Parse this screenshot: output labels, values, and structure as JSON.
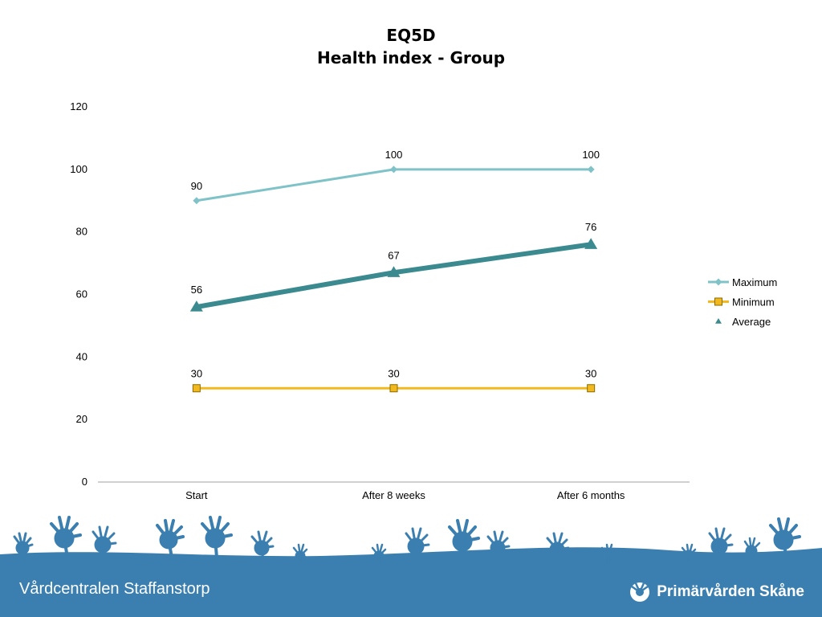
{
  "chart_data": {
    "type": "line",
    "title_lines": [
      "EQ5D",
      "Health index - Group"
    ],
    "categories": [
      "Start",
      "After 8 weeks",
      "After 6 months"
    ],
    "ylim": [
      0,
      120
    ],
    "yticks": [
      0,
      20,
      40,
      60,
      80,
      100,
      120
    ],
    "xlabel": "",
    "ylabel": "",
    "grid": false,
    "legend_position": "right",
    "series": [
      {
        "name": "Maximum",
        "values": [
          90,
          100,
          100
        ],
        "color": "#7fc3c8",
        "marker": "diamond"
      },
      {
        "name": "Minimum",
        "values": [
          30,
          30,
          30
        ],
        "color": "#f2b91e",
        "marker": "square"
      },
      {
        "name": "Average",
        "values": [
          56,
          67,
          76
        ],
        "color": "#3a8a8f",
        "marker": "triangle"
      }
    ]
  },
  "footer": {
    "left_text": "Vårdcentralen Staffanstorp",
    "logo_text": "Primärvården Skåne",
    "band_color": "#3b7fb0"
  }
}
